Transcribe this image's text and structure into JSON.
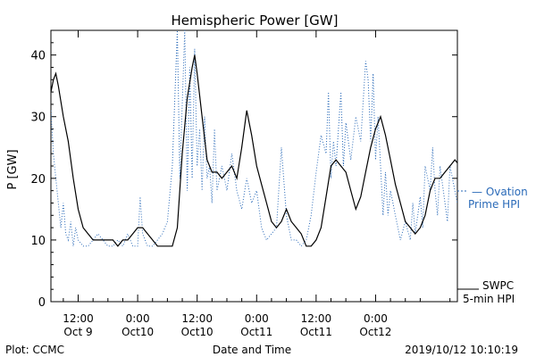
{
  "chart_data": {
    "type": "line",
    "title": "Hemispheric Power [GW]",
    "ylabel": "P [GW]",
    "xlabel": "Date and Time",
    "ylim": [
      0,
      44
    ],
    "yticks": [
      0,
      10,
      20,
      30,
      40
    ],
    "xlim_hours_from_oct9_0000": [
      6.5,
      88.5
    ],
    "xticks": [
      {
        "hour": 12,
        "line1": "12:00",
        "line2": "Oct 9"
      },
      {
        "hour": 24,
        "line1": "0:00",
        "line2": "Oct10"
      },
      {
        "hour": 36,
        "line1": "12:00",
        "line2": "Oct10"
      },
      {
        "hour": 48,
        "line1": "0:00",
        "line2": "Oct11"
      },
      {
        "hour": 60,
        "line1": "12:00",
        "line2": "Oct11"
      },
      {
        "hour": 72,
        "line1": "0:00",
        "line2": "Oct12"
      }
    ],
    "series": [
      {
        "name": "SWPC 5-min HPI",
        "style": "solid",
        "color": "#000000",
        "points": [
          [
            6.5,
            34
          ],
          [
            7,
            36
          ],
          [
            7.5,
            37
          ],
          [
            8,
            35
          ],
          [
            9,
            30
          ],
          [
            10,
            26
          ],
          [
            11,
            20
          ],
          [
            12,
            15
          ],
          [
            13,
            12
          ],
          [
            14,
            11
          ],
          [
            15,
            10
          ],
          [
            16,
            10
          ],
          [
            17,
            10
          ],
          [
            18,
            10
          ],
          [
            19,
            10
          ],
          [
            20,
            9
          ],
          [
            21,
            10
          ],
          [
            22,
            10
          ],
          [
            23,
            11
          ],
          [
            24,
            12
          ],
          [
            25,
            12
          ],
          [
            26,
            11
          ],
          [
            27,
            10
          ],
          [
            28,
            9
          ],
          [
            29,
            9
          ],
          [
            30,
            9
          ],
          [
            31,
            9
          ],
          [
            32,
            12
          ],
          [
            33,
            24
          ],
          [
            34,
            33
          ],
          [
            35,
            38
          ],
          [
            35.5,
            40
          ],
          [
            36,
            37
          ],
          [
            37,
            30
          ],
          [
            38,
            23
          ],
          [
            39,
            21
          ],
          [
            40,
            21
          ],
          [
            41,
            20
          ],
          [
            42,
            21
          ],
          [
            43,
            22
          ],
          [
            44,
            20
          ],
          [
            45,
            25
          ],
          [
            46,
            31
          ],
          [
            47,
            27
          ],
          [
            48,
            22
          ],
          [
            49,
            19
          ],
          [
            50,
            16
          ],
          [
            51,
            13
          ],
          [
            52,
            12
          ],
          [
            53,
            13
          ],
          [
            54,
            15
          ],
          [
            55,
            13
          ],
          [
            56,
            12
          ],
          [
            57,
            11
          ],
          [
            58,
            9
          ],
          [
            59,
            9
          ],
          [
            60,
            10
          ],
          [
            61,
            12
          ],
          [
            62,
            17
          ],
          [
            63,
            22
          ],
          [
            64,
            23
          ],
          [
            65,
            22
          ],
          [
            66,
            21
          ],
          [
            67,
            18
          ],
          [
            68,
            15
          ],
          [
            69,
            17
          ],
          [
            70,
            21
          ],
          [
            71,
            25
          ],
          [
            72,
            28
          ],
          [
            73,
            30
          ],
          [
            74,
            27
          ],
          [
            75,
            23
          ],
          [
            76,
            19
          ],
          [
            77,
            16
          ],
          [
            78,
            13
          ],
          [
            79,
            12
          ],
          [
            80,
            11
          ],
          [
            81,
            12
          ],
          [
            82,
            14
          ],
          [
            83,
            18
          ],
          [
            84,
            20
          ],
          [
            85,
            20
          ],
          [
            86,
            21
          ],
          [
            87,
            22
          ],
          [
            88,
            23
          ],
          [
            89,
            22
          ],
          [
            90,
            21
          ],
          [
            91,
            21
          ],
          [
            92,
            21
          ],
          [
            93,
            22
          ],
          [
            94,
            21
          ],
          [
            95,
            21
          ],
          [
            96,
            22
          ],
          [
            97,
            22
          ],
          [
            98,
            20
          ]
        ]
      },
      {
        "name": "Ovation Prime HPI",
        "style": "dotted",
        "color": "#2a6ab8",
        "points": [
          [
            6.5,
            31
          ],
          [
            7,
            24
          ],
          [
            7.5,
            20
          ],
          [
            8,
            16
          ],
          [
            8.5,
            12
          ],
          [
            9,
            16
          ],
          [
            9.5,
            11
          ],
          [
            10,
            10
          ],
          [
            10.5,
            13
          ],
          [
            11,
            9
          ],
          [
            11.5,
            12
          ],
          [
            12,
            10
          ],
          [
            13,
            9
          ],
          [
            14,
            9
          ],
          [
            15,
            10
          ],
          [
            16,
            11
          ],
          [
            17,
            10
          ],
          [
            18,
            9
          ],
          [
            19,
            9
          ],
          [
            20,
            10
          ],
          [
            21,
            9
          ],
          [
            22,
            11
          ],
          [
            23,
            9
          ],
          [
            24,
            9
          ],
          [
            24.5,
            17
          ],
          [
            25,
            11
          ],
          [
            25.5,
            10
          ],
          [
            26,
            9
          ],
          [
            27,
            9
          ],
          [
            28,
            10
          ],
          [
            29,
            11
          ],
          [
            30,
            13
          ],
          [
            31,
            22
          ],
          [
            32,
            44
          ],
          [
            32.5,
            20
          ],
          [
            33,
            32
          ],
          [
            33.5,
            44
          ],
          [
            34,
            18
          ],
          [
            34.5,
            38
          ],
          [
            35,
            20
          ],
          [
            35.5,
            41
          ],
          [
            36,
            22
          ],
          [
            36.5,
            28
          ],
          [
            37,
            18
          ],
          [
            37.5,
            30
          ],
          [
            38,
            20
          ],
          [
            38.5,
            22
          ],
          [
            39,
            16
          ],
          [
            39.5,
            28
          ],
          [
            40,
            18
          ],
          [
            41,
            22
          ],
          [
            42,
            18
          ],
          [
            43,
            24
          ],
          [
            44,
            18
          ],
          [
            45,
            15
          ],
          [
            46,
            20
          ],
          [
            47,
            16
          ],
          [
            48,
            18
          ],
          [
            49,
            12
          ],
          [
            50,
            10
          ],
          [
            51,
            11
          ],
          [
            52,
            12
          ],
          [
            53,
            25
          ],
          [
            54,
            14
          ],
          [
            55,
            10
          ],
          [
            56,
            10
          ],
          [
            57,
            9
          ],
          [
            58,
            10
          ],
          [
            59,
            14
          ],
          [
            60,
            21
          ],
          [
            61,
            27
          ],
          [
            62,
            24
          ],
          [
            62.5,
            34
          ],
          [
            63,
            20
          ],
          [
            63.5,
            26
          ],
          [
            64,
            22
          ],
          [
            65,
            34
          ],
          [
            65.5,
            22
          ],
          [
            66,
            29
          ],
          [
            67,
            23
          ],
          [
            68,
            30
          ],
          [
            69,
            26
          ],
          [
            70,
            39
          ],
          [
            70.5,
            36
          ],
          [
            71,
            26
          ],
          [
            71.5,
            37
          ],
          [
            72,
            23
          ],
          [
            72.5,
            30
          ],
          [
            73,
            22
          ],
          [
            73.5,
            14
          ],
          [
            74,
            21
          ],
          [
            74.5,
            14
          ],
          [
            75,
            18
          ],
          [
            76,
            14
          ],
          [
            77,
            10
          ],
          [
            78,
            13
          ],
          [
            79,
            10
          ],
          [
            79.5,
            16
          ],
          [
            80,
            11
          ],
          [
            81,
            17
          ],
          [
            81.5,
            12
          ],
          [
            82,
            22
          ],
          [
            83,
            18
          ],
          [
            83.5,
            25
          ],
          [
            84,
            18
          ],
          [
            84.5,
            14
          ],
          [
            85,
            22
          ],
          [
            86,
            16
          ],
          [
            86.5,
            13
          ],
          [
            87,
            22
          ],
          [
            88,
            18
          ],
          [
            88.5,
            16
          ]
        ]
      }
    ],
    "legend_right": [
      {
        "symbol": "— Ovation",
        "line2": "Prime HPI",
        "color": "#2a6ab8"
      },
      {
        "symbol": "SWPC",
        "line2": "5-min HPI",
        "color": "#000000"
      }
    ]
  },
  "footer": {
    "left": "Plot: CCMC",
    "center": "Date and Time",
    "right": "2019/10/12 10:10:19"
  }
}
